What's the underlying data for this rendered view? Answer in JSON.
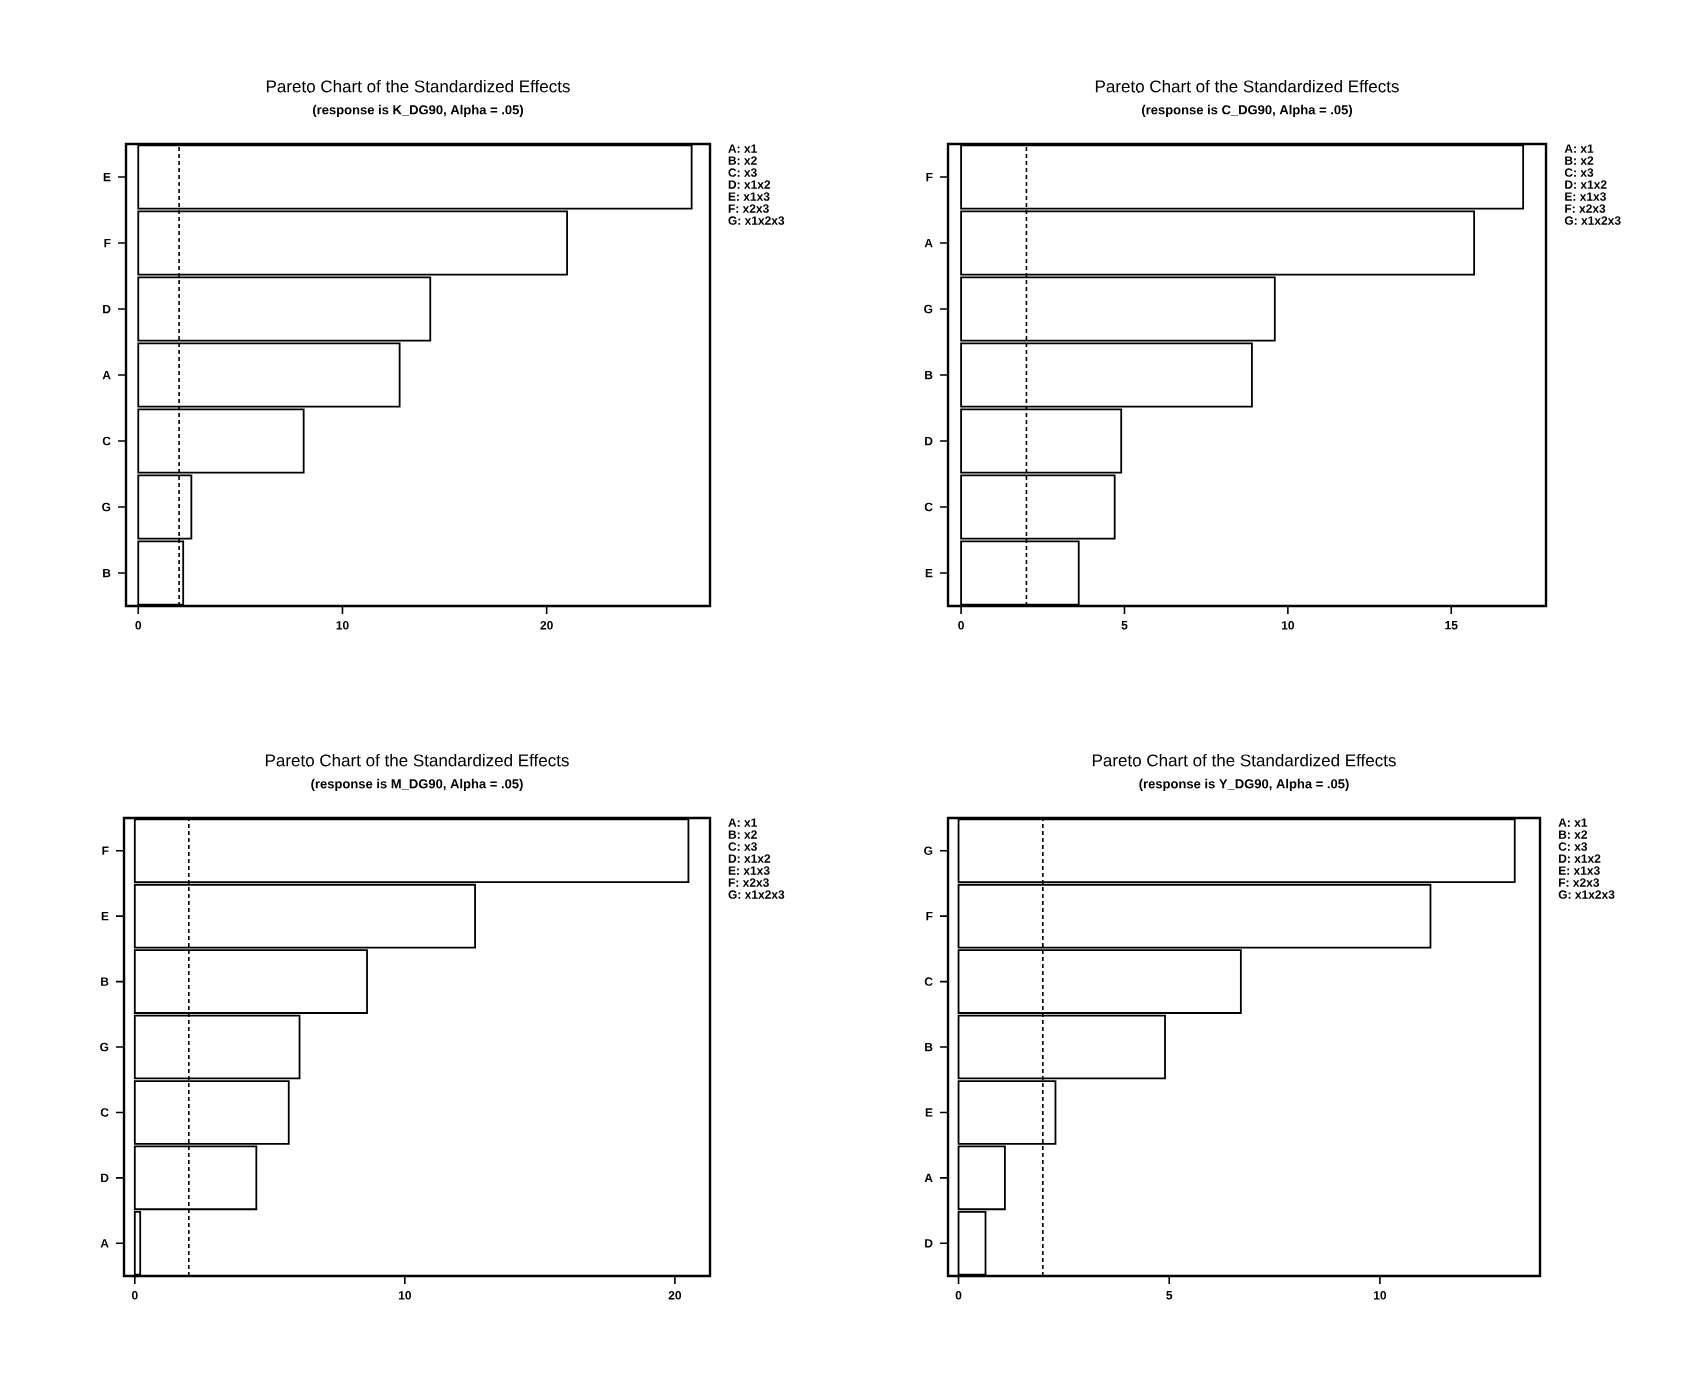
{
  "chart_data": [
    {
      "type": "bar",
      "orientation": "horizontal",
      "title": "Pareto Chart of the Standardized Effects",
      "subtitle": "(response is K_DG90, Alpha = .05)",
      "categories": [
        "E",
        "F",
        "D",
        "A",
        "C",
        "G",
        "B"
      ],
      "values": [
        27.1,
        21.0,
        14.3,
        12.8,
        8.1,
        2.6,
        2.2
      ],
      "color": "#ffffff",
      "xlim": [
        -0.6,
        28
      ],
      "xticks": [
        0,
        10,
        20
      ],
      "ref_lines": [
        {
          "axis": "x",
          "value": 2.0,
          "line_style": "dashed"
        }
      ],
      "annotations": [
        "A: x1",
        "B: x2",
        "C: x3",
        "D: x1x2",
        "E: x1x3",
        "F: x2x3",
        "G: x1x2x3"
      ]
    },
    {
      "type": "bar",
      "orientation": "horizontal",
      "title": "Pareto Chart of the Standardized Effects",
      "subtitle": "(response is C_DG90, Alpha = .05)",
      "categories": [
        "F",
        "A",
        "G",
        "B",
        "D",
        "C",
        "E"
      ],
      "values": [
        17.2,
        15.7,
        9.6,
        8.9,
        4.9,
        4.7,
        3.6
      ],
      "color": "#ffffff",
      "xlim": [
        -0.4,
        17.9
      ],
      "xticks": [
        0,
        5,
        10,
        15
      ],
      "ref_lines": [
        {
          "axis": "x",
          "value": 2.0,
          "line_style": "dashed"
        }
      ],
      "annotations": [
        "A: x1",
        "B: x2",
        "C: x3",
        "D: x1x2",
        "E: x1x3",
        "F: x2x3",
        "G: x1x2x3"
      ]
    },
    {
      "type": "bar",
      "orientation": "horizontal",
      "title": "Pareto Chart of the Standardized Effects",
      "subtitle": "(response is M_DG90, Alpha = .05)",
      "categories": [
        "F",
        "E",
        "B",
        "G",
        "C",
        "D",
        "A"
      ],
      "values": [
        20.5,
        12.6,
        8.6,
        6.1,
        5.7,
        4.5,
        0.2
      ],
      "color": "#ffffff",
      "xlim": [
        -0.4,
        21.3
      ],
      "xticks": [
        0,
        10,
        20
      ],
      "ref_lines": [
        {
          "axis": "x",
          "value": 2.0,
          "line_style": "dashed"
        }
      ],
      "annotations": [
        "A: x1",
        "B: x2",
        "C: x3",
        "D: x1x2",
        "E: x1x3",
        "F: x2x3",
        "G: x1x2x3"
      ]
    },
    {
      "type": "bar",
      "orientation": "horizontal",
      "title": "Pareto Chart of the Standardized Effects",
      "subtitle": "(response is Y_DG90, Alpha = .05)",
      "categories": [
        "G",
        "F",
        "C",
        "B",
        "E",
        "A",
        "D"
      ],
      "values": [
        13.2,
        11.2,
        6.7,
        4.9,
        2.3,
        1.1,
        0.64
      ],
      "color": "#ffffff",
      "xlim": [
        -0.25,
        13.8
      ],
      "xticks": [
        0,
        5,
        10
      ],
      "ref_lines": [
        {
          "axis": "x",
          "value": 2.0,
          "line_style": "dashed"
        }
      ],
      "annotations": [
        "A: x1",
        "B: x2",
        "C: x3",
        "D: x1x2",
        "E: x1x3",
        "F: x2x3",
        "G: x1x2x3"
      ]
    }
  ]
}
